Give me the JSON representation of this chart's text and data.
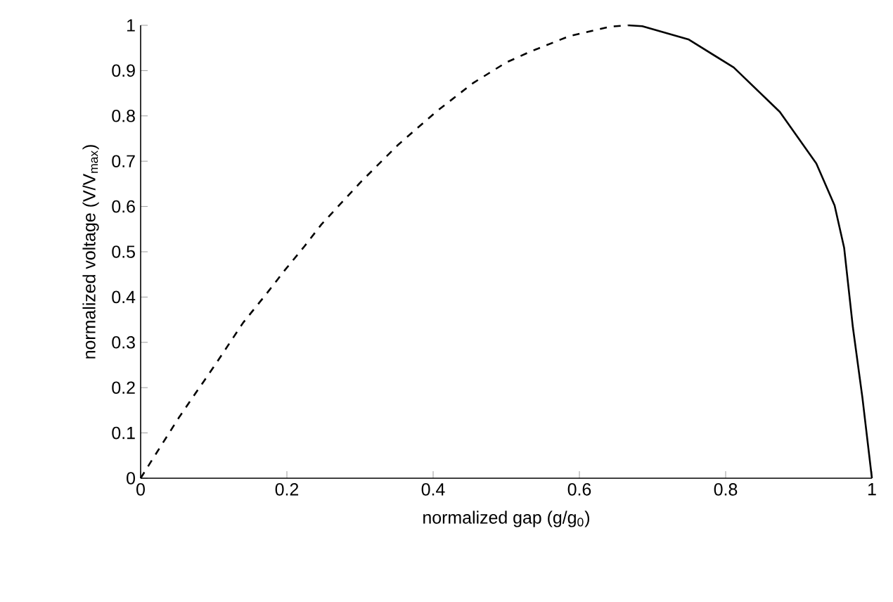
{
  "chart_data": {
    "type": "line",
    "xlabel": "normalized gap (g/g$_{0}$)",
    "ylabel": "normalized voltage (V/V$_{max}$)",
    "xlim": [
      0,
      1
    ],
    "ylim": [
      0,
      1
    ],
    "xticks": [
      0,
      0.2,
      0.4,
      0.6,
      0.8,
      1
    ],
    "yticks": [
      0,
      0.1,
      0.2,
      0.3,
      0.4,
      0.5,
      0.6,
      0.7,
      0.8,
      0.9,
      1
    ],
    "marker": "none",
    "series": [
      {
        "color": "#000000",
        "line_style": "dashed",
        "x": [
          0,
          0.019,
          0.052,
          0.071,
          0.103,
          0.14,
          0.172,
          0.197,
          0.224,
          0.247,
          0.301,
          0.352,
          0.404,
          0.455,
          0.5,
          0.533,
          0.586,
          0.642,
          0.667
        ],
        "values": [
          0,
          0.049,
          0.133,
          0.178,
          0.253,
          0.343,
          0.407,
          0.459,
          0.512,
          0.56,
          0.654,
          0.736,
          0.809,
          0.873,
          0.918,
          0.942,
          0.976,
          0.997,
          1
        ]
      },
      {
        "color": "#000000",
        "line_style": "solid",
        "x": [
          0.667,
          0.686,
          0.749,
          0.811,
          0.874,
          0.924,
          0.949,
          0.962,
          0.974,
          0.987,
          1
        ],
        "values": [
          1,
          0.998,
          0.969,
          0.907,
          0.809,
          0.695,
          0.602,
          0.509,
          0.333,
          0.178,
          0
        ]
      }
    ]
  }
}
